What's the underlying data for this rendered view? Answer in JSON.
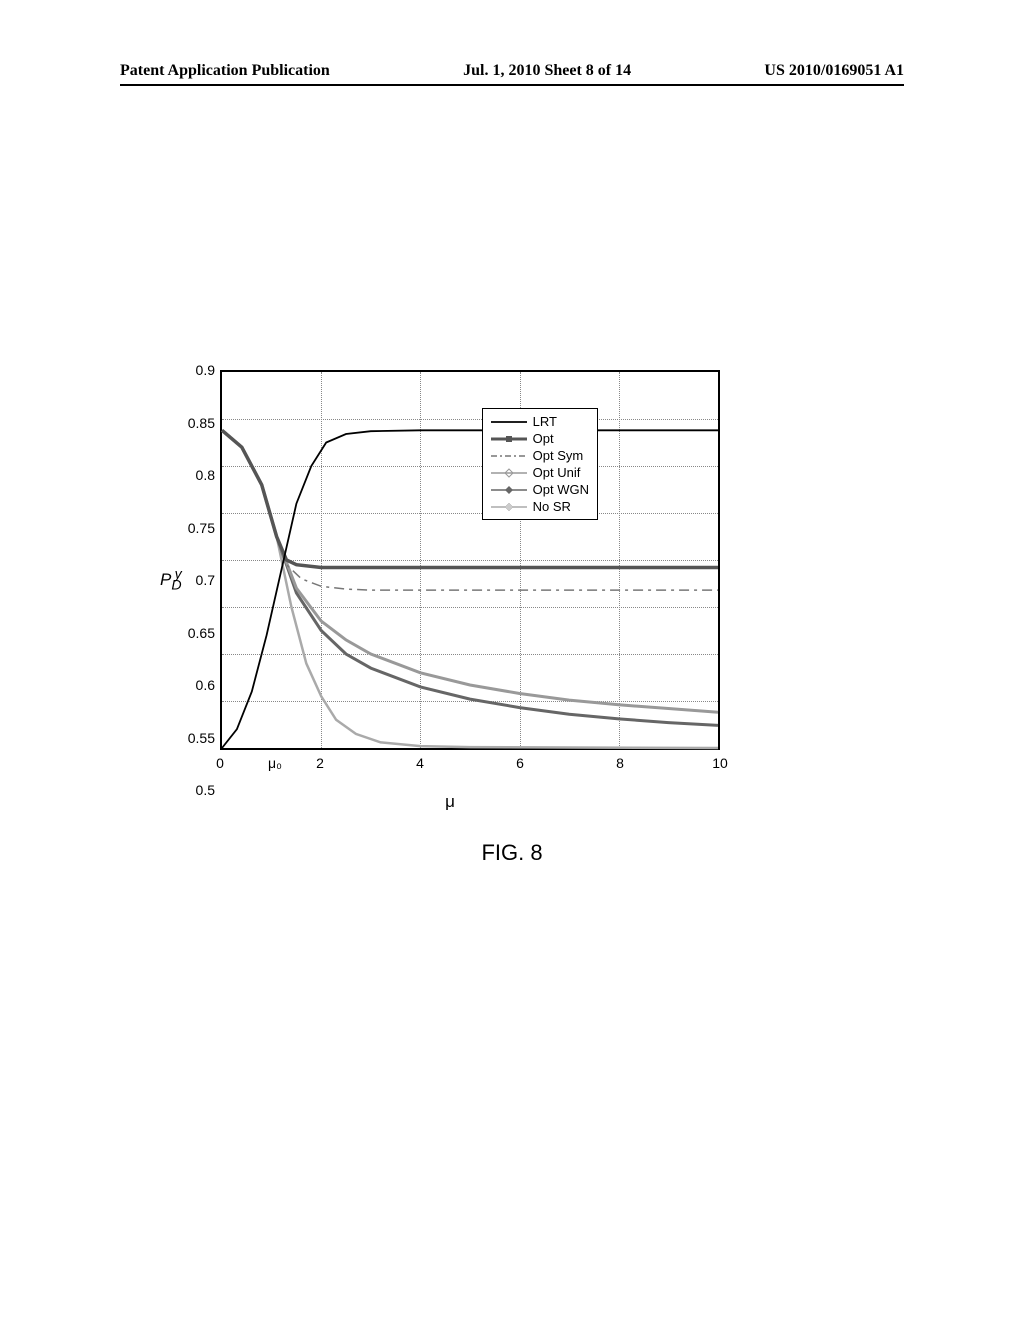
{
  "header": {
    "left": "Patent Application Publication",
    "center": "Jul. 1, 2010  Sheet 8 of 14",
    "right": "US 2010/0169051 A1"
  },
  "figure_caption": "FIG. 8",
  "chart": {
    "type": "line",
    "xlabel": "μ",
    "ylabel": "P_D^y",
    "xlim": [
      0,
      10
    ],
    "ylim": [
      0.5,
      0.9
    ],
    "xticks": [
      0,
      2,
      4,
      6,
      8,
      10
    ],
    "yticks": [
      0.5,
      0.55,
      0.6,
      0.65,
      0.7,
      0.75,
      0.8,
      0.85,
      0.9
    ],
    "mu0_label": "μ₀",
    "mu0_x": 1.1,
    "background_color": "#ffffff",
    "grid_color": "#888888",
    "axis_color": "#000000",
    "legend": {
      "items": [
        {
          "label": "LRT",
          "style": "solid",
          "color": "#000000",
          "marker": "none"
        },
        {
          "label": "Opt",
          "style": "solid-thick",
          "color": "#555555",
          "marker": "square"
        },
        {
          "label": "Opt Sym",
          "style": "dashdot",
          "color": "#777777",
          "marker": "none"
        },
        {
          "label": "Opt Unif",
          "style": "solid",
          "color": "#999999",
          "marker": "diamond-open"
        },
        {
          "label": "Opt WGN",
          "style": "solid",
          "color": "#666666",
          "marker": "diamond-filled"
        },
        {
          "label": "No SR",
          "style": "solid",
          "color": "#aaaaaa",
          "marker": "diamond-light"
        }
      ]
    },
    "series": {
      "LRT": {
        "color": "#000000",
        "width": 1.8,
        "dash": "none",
        "marker": "none",
        "points": [
          [
            0,
            0.5
          ],
          [
            0.3,
            0.52
          ],
          [
            0.6,
            0.56
          ],
          [
            0.9,
            0.62
          ],
          [
            1.2,
            0.69
          ],
          [
            1.5,
            0.76
          ],
          [
            1.8,
            0.8
          ],
          [
            2.1,
            0.825
          ],
          [
            2.5,
            0.834
          ],
          [
            3.0,
            0.837
          ],
          [
            4.0,
            0.838
          ],
          [
            6.0,
            0.838
          ],
          [
            10.0,
            0.838
          ]
        ]
      },
      "Opt": {
        "color": "#555555",
        "width": 3.5,
        "dash": "none",
        "marker": "none",
        "points": [
          [
            0,
            0.838
          ],
          [
            0.4,
            0.82
          ],
          [
            0.8,
            0.78
          ],
          [
            1.1,
            0.725
          ],
          [
            1.3,
            0.7
          ],
          [
            1.5,
            0.695
          ],
          [
            2.0,
            0.692
          ],
          [
            3.0,
            0.692
          ],
          [
            10.0,
            0.692
          ]
        ]
      },
      "OptSym": {
        "color": "#777777",
        "width": 1.5,
        "dash": "dashdot",
        "marker": "none",
        "points": [
          [
            0,
            0.838
          ],
          [
            0.4,
            0.82
          ],
          [
            0.8,
            0.78
          ],
          [
            1.1,
            0.725
          ],
          [
            1.3,
            0.695
          ],
          [
            1.6,
            0.68
          ],
          [
            2.0,
            0.672
          ],
          [
            2.5,
            0.669
          ],
          [
            3.0,
            0.668
          ],
          [
            10.0,
            0.668
          ]
        ]
      },
      "OptUnif": {
        "color": "#999999",
        "width": 3.0,
        "dash": "none",
        "marker": "none",
        "points": [
          [
            0,
            0.838
          ],
          [
            0.4,
            0.82
          ],
          [
            0.8,
            0.78
          ],
          [
            1.1,
            0.725
          ],
          [
            1.5,
            0.67
          ],
          [
            2.0,
            0.635
          ],
          [
            2.5,
            0.615
          ],
          [
            3.0,
            0.6
          ],
          [
            4.0,
            0.58
          ],
          [
            5.0,
            0.567
          ],
          [
            6.0,
            0.558
          ],
          [
            7.0,
            0.551
          ],
          [
            8.0,
            0.546
          ],
          [
            9.0,
            0.542
          ],
          [
            10.0,
            0.538
          ]
        ]
      },
      "OptWGN": {
        "color": "#666666",
        "width": 3.0,
        "dash": "none",
        "marker": "none",
        "points": [
          [
            0,
            0.838
          ],
          [
            0.4,
            0.82
          ],
          [
            0.8,
            0.78
          ],
          [
            1.1,
            0.725
          ],
          [
            1.5,
            0.665
          ],
          [
            2.0,
            0.625
          ],
          [
            2.5,
            0.6
          ],
          [
            3.0,
            0.585
          ],
          [
            4.0,
            0.565
          ],
          [
            5.0,
            0.552
          ],
          [
            6.0,
            0.543
          ],
          [
            7.0,
            0.536
          ],
          [
            8.0,
            0.531
          ],
          [
            9.0,
            0.527
          ],
          [
            10.0,
            0.524
          ]
        ]
      },
      "NoSR": {
        "color": "#aaaaaa",
        "width": 2.5,
        "dash": "none",
        "marker": "none",
        "points": [
          [
            0,
            0.838
          ],
          [
            0.4,
            0.82
          ],
          [
            0.8,
            0.78
          ],
          [
            1.1,
            0.725
          ],
          [
            1.4,
            0.65
          ],
          [
            1.7,
            0.59
          ],
          [
            2.0,
            0.555
          ],
          [
            2.3,
            0.53
          ],
          [
            2.7,
            0.515
          ],
          [
            3.2,
            0.506
          ],
          [
            4.0,
            0.502
          ],
          [
            5.0,
            0.501
          ],
          [
            10.0,
            0.5
          ]
        ]
      }
    }
  }
}
